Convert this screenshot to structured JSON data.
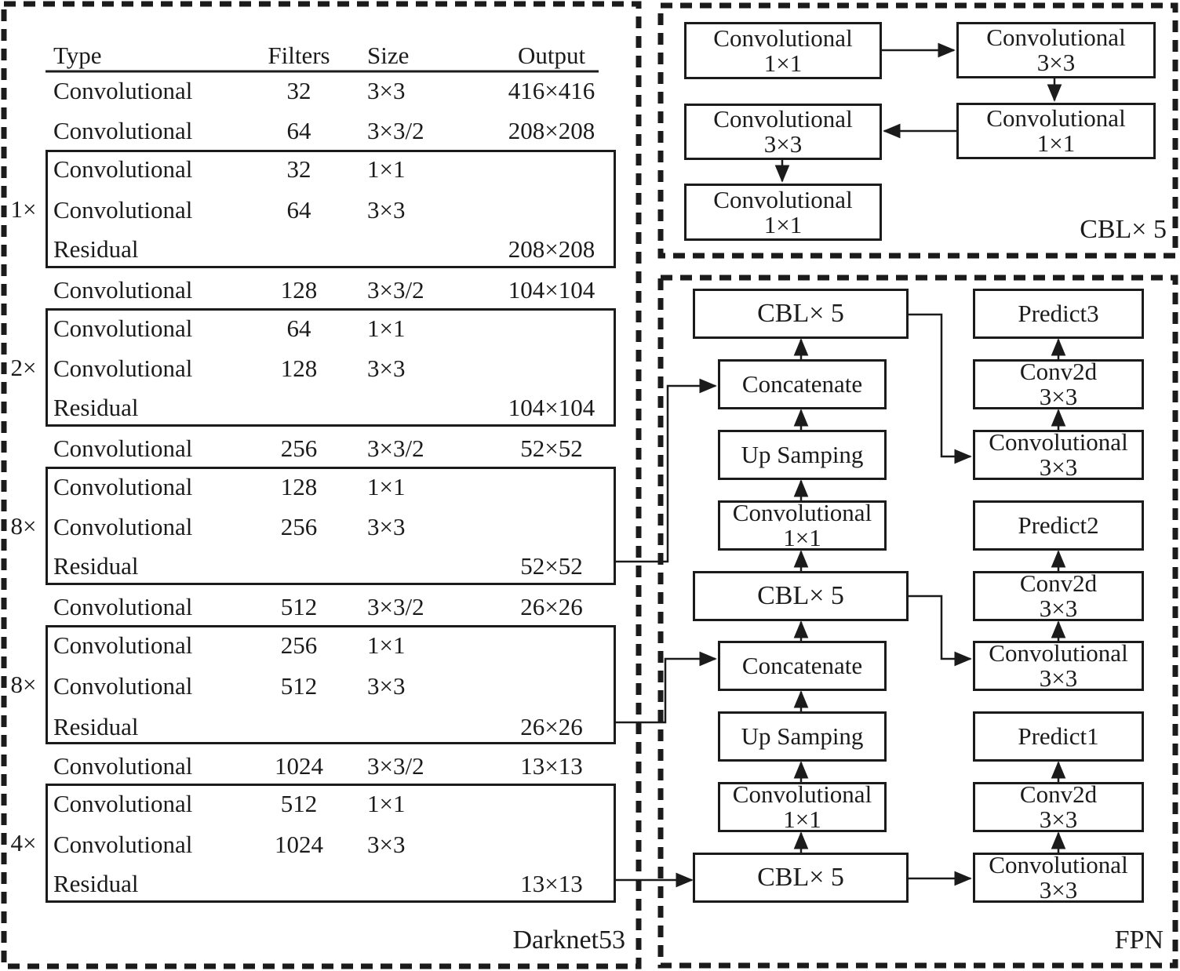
{
  "panels": {
    "darknet": {
      "label": "Darknet53",
      "table": {
        "headers": [
          "Type",
          "Filters",
          "Size",
          "Output"
        ],
        "rows": [
          {
            "type": "Convolutional",
            "filters": "32",
            "size": "3×3",
            "output": "416×416"
          },
          {
            "type": "Convolutional",
            "filters": "64",
            "size": "3×3/2",
            "output": "208×208"
          },
          {
            "type": "Convolutional",
            "filters": "32",
            "size": "1×1",
            "output": ""
          },
          {
            "type": "Convolutional",
            "filters": "64",
            "size": "3×3",
            "output": ""
          },
          {
            "type": "Residual",
            "filters": "",
            "size": "",
            "output": "208×208"
          },
          {
            "type": "Convolutional",
            "filters": "128",
            "size": "3×3/2",
            "output": "104×104"
          },
          {
            "type": "Convolutional",
            "filters": "64",
            "size": "1×1",
            "output": ""
          },
          {
            "type": "Convolutional",
            "filters": "128",
            "size": "3×3",
            "output": ""
          },
          {
            "type": "Residual",
            "filters": "",
            "size": "",
            "output": "104×104"
          },
          {
            "type": "Convolutional",
            "filters": "256",
            "size": "3×3/2",
            "output": "52×52"
          },
          {
            "type": "Convolutional",
            "filters": "128",
            "size": "1×1",
            "output": ""
          },
          {
            "type": "Convolutional",
            "filters": "256",
            "size": "3×3",
            "output": ""
          },
          {
            "type": "Residual",
            "filters": "",
            "size": "",
            "output": "52×52"
          },
          {
            "type": "Convolutional",
            "filters": "512",
            "size": "3×3/2",
            "output": "26×26"
          },
          {
            "type": "Convolutional",
            "filters": "256",
            "size": "1×1",
            "output": ""
          },
          {
            "type": "Convolutional",
            "filters": "512",
            "size": "3×3",
            "output": ""
          },
          {
            "type": "Residual",
            "filters": "",
            "size": "",
            "output": "26×26"
          },
          {
            "type": "Convolutional",
            "filters": "1024",
            "size": "3×3/2",
            "output": "13×13"
          },
          {
            "type": "Convolutional",
            "filters": "512",
            "size": "1×1",
            "output": ""
          },
          {
            "type": "Convolutional",
            "filters": "1024",
            "size": "3×3",
            "output": ""
          },
          {
            "type": "Residual",
            "filters": "",
            "size": "",
            "output": "13×13"
          }
        ],
        "groups": [
          {
            "multiplier": "1×"
          },
          {
            "multiplier": "2×"
          },
          {
            "multiplier": "8×"
          },
          {
            "multiplier": "8×"
          },
          {
            "multiplier": "4×"
          }
        ]
      }
    },
    "cbl": {
      "label": "CBL× 5",
      "boxes": [
        {
          "line1": "Convolutional",
          "line2": "1×1"
        },
        {
          "line1": "Convolutional",
          "line2": "3×3"
        },
        {
          "line1": "Convolutional",
          "line2": "1×1"
        },
        {
          "line1": "Convolutional",
          "line2": "3×3"
        },
        {
          "line1": "Convolutional",
          "line2": "1×1"
        }
      ]
    },
    "fpn": {
      "label": "FPN",
      "chain_boxes": [
        {
          "line1": "CBL× 5"
        },
        {
          "line1": "Concatenate"
        },
        {
          "line1": "Up Samping"
        },
        {
          "line1": "Convolutional",
          "line2": "1×1"
        },
        {
          "line1": "CBL× 5"
        },
        {
          "line1": "Concatenate"
        },
        {
          "line1": "Up Samping"
        },
        {
          "line1": "Convolutional",
          "line2": "1×1"
        },
        {
          "line1": "CBL× 5"
        }
      ],
      "output_boxes": [
        {
          "line1": "Predict3"
        },
        {
          "line1": "Conv2d",
          "line2": "3×3"
        },
        {
          "line1": "Convolutional",
          "line2": "3×3"
        },
        {
          "line1": "Predict2"
        },
        {
          "line1": "Conv2d",
          "line2": "3×3"
        },
        {
          "line1": "Convolutional",
          "line2": "3×3"
        },
        {
          "line1": "Predict1"
        },
        {
          "line1": "Conv2d",
          "line2": "3×3"
        },
        {
          "line1": "Convolutional",
          "line2": "3×3"
        }
      ]
    }
  }
}
